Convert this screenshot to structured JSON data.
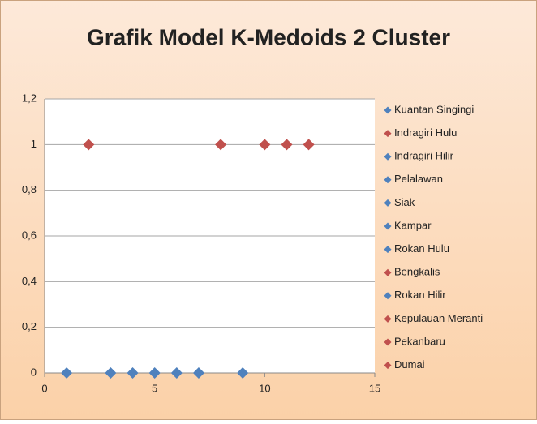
{
  "chart_data": {
    "type": "scatter",
    "title": "Grafik Model K-Medoids 2 Cluster",
    "series": [
      {
        "name": "Kuantan Singingi",
        "color": "#4f81bd",
        "x": [
          1
        ],
        "values": [
          0
        ]
      },
      {
        "name": "Indragiri Hulu",
        "color": "#c0504d",
        "x": [
          2
        ],
        "values": [
          1
        ]
      },
      {
        "name": "Indragiri Hilir",
        "color": "#4f81bd",
        "x": [
          3
        ],
        "values": [
          0
        ]
      },
      {
        "name": "Pelalawan",
        "color": "#4f81bd",
        "x": [
          4
        ],
        "values": [
          0
        ]
      },
      {
        "name": "Siak",
        "color": "#4f81bd",
        "x": [
          5
        ],
        "values": [
          0
        ]
      },
      {
        "name": "Kampar",
        "color": "#4f81bd",
        "x": [
          6
        ],
        "values": [
          0
        ]
      },
      {
        "name": "Rokan Hulu",
        "color": "#4f81bd",
        "x": [
          7
        ],
        "values": [
          0
        ]
      },
      {
        "name": "Bengkalis",
        "color": "#c0504d",
        "x": [
          8
        ],
        "values": [
          1
        ]
      },
      {
        "name": "Rokan Hilir",
        "color": "#4f81bd",
        "x": [
          9
        ],
        "values": [
          0
        ]
      },
      {
        "name": "Kepulauan Meranti",
        "color": "#c0504d",
        "x": [
          10
        ],
        "values": [
          1
        ]
      },
      {
        "name": "Pekanbaru",
        "color": "#c0504d",
        "x": [
          11
        ],
        "values": [
          1
        ]
      },
      {
        "name": "Dumai",
        "color": "#c0504d",
        "x": [
          12
        ],
        "values": [
          1
        ]
      }
    ],
    "xlim": [
      0,
      15
    ],
    "xticks": [
      0,
      5,
      10,
      15
    ],
    "ylim": [
      0,
      1.2
    ],
    "yticks": [
      0,
      {
        "value": 0.2,
        "label": "0,2"
      },
      {
        "value": 0.4,
        "label": "0,4"
      },
      {
        "value": 0.6,
        "label": "0,6"
      },
      {
        "value": 0.8,
        "label": "0,8"
      },
      1,
      {
        "value": 1.2,
        "label": "1,2"
      }
    ],
    "grid": true,
    "legend": "right"
  }
}
